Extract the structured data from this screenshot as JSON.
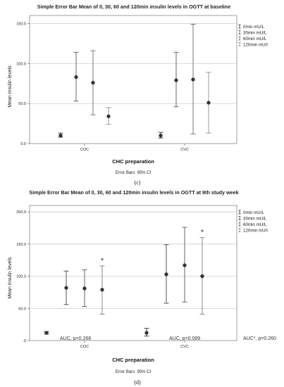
{
  "chart_data": [
    {
      "type": "errorbar",
      "title": "Simple Error Bar Mean of 0, 30, 60 and 120min insulin levels in OGTT at baseline",
      "xlabel": "CHC preparation",
      "ylabel": "Mean Insulin levels",
      "ylim": [
        0,
        160
      ],
      "y_ticks": [
        "0.0",
        "50.0",
        "100.0",
        "150.0"
      ],
      "y_tick_values": [
        0,
        50,
        100,
        150
      ],
      "grid": "horizontal",
      "categories": [
        "COC",
        "CVC"
      ],
      "legend_position": "top-right",
      "series": [
        {
          "name": "0min mU/L",
          "color": "#444444",
          "mean": [
            10,
            10
          ],
          "low": [
            8,
            7
          ],
          "high": [
            13,
            14
          ]
        },
        {
          "name": "30min mU/L",
          "color": "#666666",
          "mean": [
            83,
            79
          ],
          "low": [
            53,
            46
          ],
          "high": [
            114,
            114
          ]
        },
        {
          "name": "60min mU/L",
          "color": "#777777",
          "mean": [
            76,
            80
          ],
          "low": [
            36,
            12
          ],
          "high": [
            116,
            149
          ]
        },
        {
          "name": "120min mU/l",
          "color": "#999999",
          "mean": [
            34,
            51
          ],
          "low": [
            24,
            13
          ],
          "high": [
            45,
            89
          ]
        }
      ],
      "footnote": "Error Bars: 95% CI",
      "panel_label": "(c)"
    },
    {
      "type": "errorbar",
      "title": "Simple Error Bar Mean of 0, 30, 60 and 120min insulin levels in OGTT at 9th study week",
      "xlabel": "CHC preparation",
      "ylabel": "Mean insulin levels",
      "ylim": [
        0,
        210
      ],
      "y_ticks": [
        ".0",
        "50.0",
        "100.0",
        "150.0",
        "200.0"
      ],
      "y_tick_values": [
        0,
        50,
        100,
        150,
        200
      ],
      "grid": "horizontal",
      "categories": [
        "COC",
        "CVC"
      ],
      "legend_position": "top-right",
      "series": [
        {
          "name": "0min mU/L",
          "color": "#444444",
          "mean": [
            12,
            12
          ],
          "low": [
            10,
            7
          ],
          "high": [
            14,
            19
          ]
        },
        {
          "name": "30min mU/L",
          "color": "#555555",
          "mean": [
            82,
            103
          ],
          "low": [
            56,
            58
          ],
          "high": [
            108,
            149
          ]
        },
        {
          "name": "60min mU/L",
          "color": "#666666",
          "mean": [
            81,
            117
          ],
          "low": [
            53,
            60
          ],
          "high": [
            110,
            176
          ]
        },
        {
          "name": "120min mU/l",
          "color": "#888888",
          "mean": [
            79,
            100
          ],
          "low": [
            41,
            41
          ],
          "high": [
            116,
            160
          ]
        }
      ],
      "significance": {
        "marker": "*",
        "series": "120min mU/l",
        "categories": [
          "COC",
          "CVC"
        ]
      },
      "annotations": [
        "AUC, p=0.268",
        "AUC, p=0.089",
        "AUC*, p=0.260"
      ],
      "footnote": "Error Bars: 95% CI",
      "panel_label": "(d)"
    }
  ]
}
